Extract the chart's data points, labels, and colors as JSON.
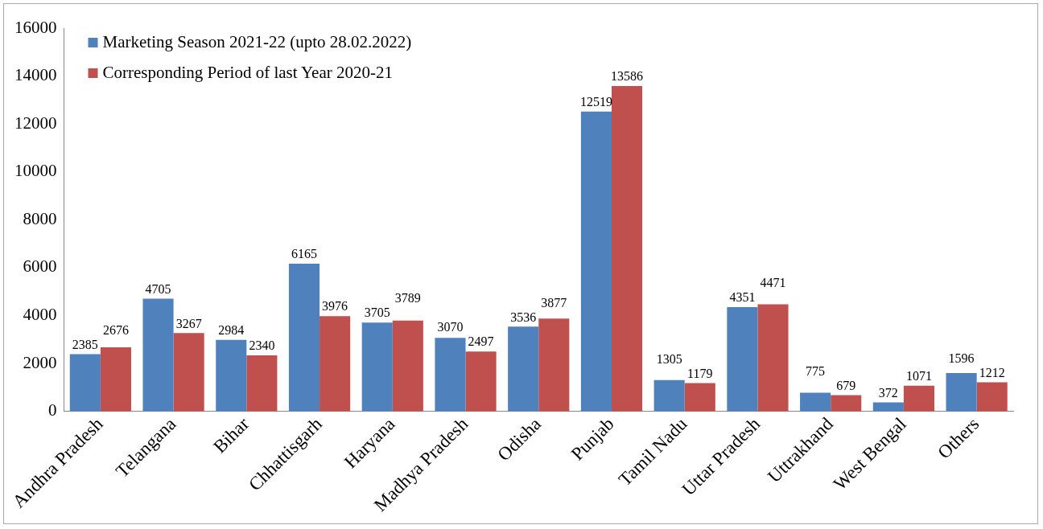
{
  "chart_data": {
    "type": "bar",
    "categories": [
      "Andhra Pradesh",
      "Telangana",
      "Bihar",
      "Chhattisgarh",
      "Haryana",
      "Madhya Pradesh",
      "Odisha",
      "Punjab",
      "Tamil Nadu",
      "Uttar Pradesh",
      "Uttrakhand",
      "West Bengal",
      "Others"
    ],
    "series": [
      {
        "name": "Marketing Season 2021-22 (upto 28.02.2022)",
        "color": "#4f81bd",
        "values": [
          2385,
          4705,
          2984,
          6165,
          3705,
          3070,
          3536,
          12519,
          1305,
          4351,
          775,
          372,
          1596
        ]
      },
      {
        "name": "Corresponding Period of last Year 2020-21",
        "color": "#c0504d",
        "values": [
          2676,
          3267,
          2340,
          3976,
          3789,
          2497,
          3877,
          13586,
          1179,
          4471,
          679,
          1071,
          1212
        ]
      }
    ],
    "ylim": [
      0,
      16000
    ],
    "yticks": [
      0,
      2000,
      4000,
      6000,
      8000,
      10000,
      12000,
      14000,
      16000
    ],
    "grid": false,
    "legend": "top left",
    "data_labels": true
  }
}
